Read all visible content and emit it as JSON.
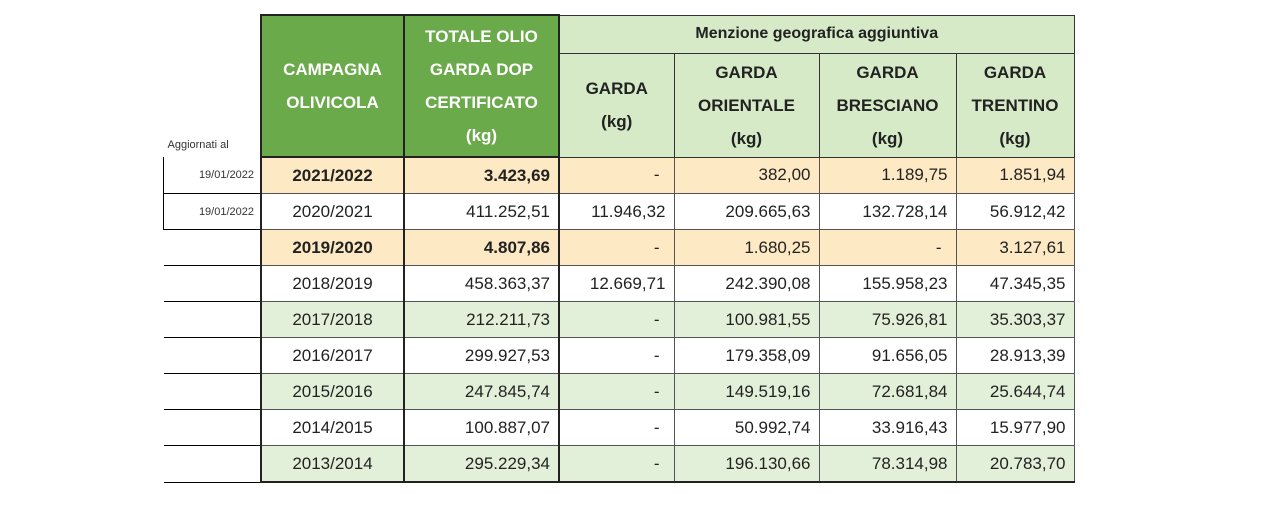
{
  "header": {
    "aggiornati_label": "Aggiornati al",
    "campagna": [
      "CAMPAGNA",
      "OLIVICOLA"
    ],
    "totale": [
      "TOTALE OLIO",
      "GARDA DOP",
      "CERTIFICATO",
      "(kg)"
    ],
    "menzione": "Menzione geografica aggiuntiva",
    "garda": [
      "GARDA",
      "(kg)"
    ],
    "orientale": [
      "GARDA",
      "ORIENTALE",
      "(kg)"
    ],
    "bresciano": [
      "GARDA",
      "BRESCIANO",
      "(kg)"
    ],
    "trentino": [
      "GARDA",
      "TRENTINO",
      "(kg)"
    ]
  },
  "colors": {
    "header_green": "#6aaa4a",
    "header_light_green": "#d6eac8",
    "row_peach": "#fde9c4",
    "row_light_green": "#e3f0d9"
  },
  "rows": [
    {
      "date": "19/01/2022",
      "campagna": "2021/2022",
      "totale": "3.423,69",
      "garda": "-",
      "orientale": "382,00",
      "bresciano": "1.189,75",
      "trentino": "1.851,94"
    },
    {
      "date": "19/01/2022",
      "campagna": "2020/2021",
      "totale": "411.252,51",
      "garda": "11.946,32",
      "orientale": "209.665,63",
      "bresciano": "132.728,14",
      "trentino": "56.912,42"
    },
    {
      "date": "",
      "campagna": "2019/2020",
      "totale": "4.807,86",
      "garda": "-",
      "orientale": "1.680,25",
      "bresciano": "-",
      "trentino": "3.127,61"
    },
    {
      "date": "",
      "campagna": "2018/2019",
      "totale": "458.363,37",
      "garda": "12.669,71",
      "orientale": "242.390,08",
      "bresciano": "155.958,23",
      "trentino": "47.345,35"
    },
    {
      "date": "",
      "campagna": "2017/2018",
      "totale": "212.211,73",
      "garda": "-",
      "orientale": "100.981,55",
      "bresciano": "75.926,81",
      "trentino": "35.303,37"
    },
    {
      "date": "",
      "campagna": "2016/2017",
      "totale": "299.927,53",
      "garda": "-",
      "orientale": "179.358,09",
      "bresciano": "91.656,05",
      "trentino": "28.913,39"
    },
    {
      "date": "",
      "campagna": "2015/2016",
      "totale": "247.845,74",
      "garda": "-",
      "orientale": "149.519,16",
      "bresciano": "72.681,84",
      "trentino": "25.644,74"
    },
    {
      "date": "",
      "campagna": "2014/2015",
      "totale": "100.887,07",
      "garda": "-",
      "orientale": "50.992,74",
      "bresciano": "33.916,43",
      "trentino": "15.977,90"
    },
    {
      "date": "",
      "campagna": "2013/2014",
      "totale": "295.229,34",
      "garda": "-",
      "orientale": "196.130,66",
      "bresciano": "78.314,98",
      "trentino": "20.783,70"
    }
  ]
}
